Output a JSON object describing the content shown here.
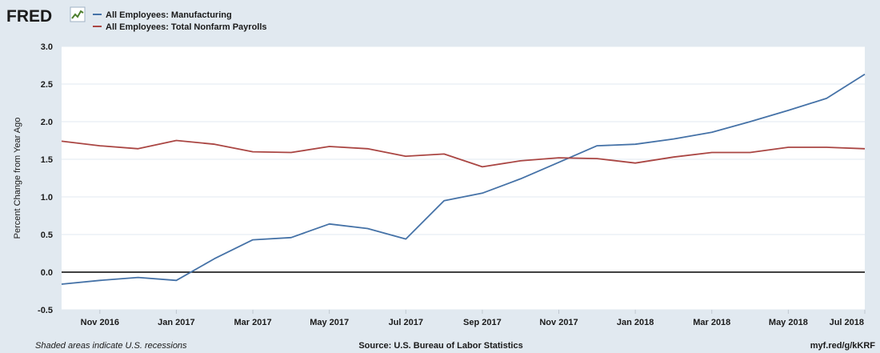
{
  "header": {
    "logo_text": "FRED",
    "logo_icon": "chart-line-icon"
  },
  "footer": {
    "recession_note": "Shaded areas indicate U.S. recessions",
    "source": "Source: U.S. Bureau of Labor Statistics",
    "short_url": "myf.red/g/kKRF"
  },
  "colors": {
    "background": "#e1e9f0",
    "plot_bg": "#ffffff",
    "grid": "#e1e9f0",
    "zero_line": "#000000",
    "series_manufacturing": "#4572a7",
    "series_nonfarm": "#aa4643"
  },
  "chart_data": {
    "type": "line",
    "title": "",
    "xlabel": "",
    "ylabel": "Percent Change from Year Ago",
    "ylim": [
      -0.5,
      3.0
    ],
    "yticks": [
      "-0.5",
      "0.0",
      "0.5",
      "1.0",
      "1.5",
      "2.0",
      "2.5",
      "3.0"
    ],
    "ytick_values": [
      -0.5,
      0.0,
      0.5,
      1.0,
      1.5,
      2.0,
      2.5,
      3.0
    ],
    "x": [
      "Oct 2016",
      "Nov 2016",
      "Dec 2016",
      "Jan 2017",
      "Feb 2017",
      "Mar 2017",
      "Apr 2017",
      "May 2017",
      "Jun 2017",
      "Jul 2017",
      "Aug 2017",
      "Sep 2017",
      "Oct 2017",
      "Nov 2017",
      "Dec 2017",
      "Jan 2018",
      "Feb 2018",
      "Mar 2018",
      "Apr 2018",
      "May 2018",
      "Jun 2018",
      "Jul 2018"
    ],
    "xticks": [
      {
        "index": 1,
        "label": "Nov 2016"
      },
      {
        "index": 3,
        "label": "Jan 2017"
      },
      {
        "index": 5,
        "label": "Mar 2017"
      },
      {
        "index": 7,
        "label": "May 2017"
      },
      {
        "index": 9,
        "label": "Jul 2017"
      },
      {
        "index": 11,
        "label": "Sep 2017"
      },
      {
        "index": 13,
        "label": "Nov 2017"
      },
      {
        "index": 15,
        "label": "Jan 2018"
      },
      {
        "index": 17,
        "label": "Mar 2018"
      },
      {
        "index": 19,
        "label": "May 2018"
      },
      {
        "index": 21,
        "label": "Jul 2018"
      }
    ],
    "series": [
      {
        "name": "All Employees: Manufacturing",
        "color": "#4572a7",
        "values": [
          -0.16,
          -0.11,
          -0.07,
          -0.11,
          0.18,
          0.43,
          0.46,
          0.64,
          0.58,
          0.44,
          0.95,
          1.05,
          1.24,
          1.46,
          1.68,
          1.7,
          1.77,
          1.86,
          2.0,
          2.15,
          2.31,
          2.63
        ]
      },
      {
        "name": "All Employees: Total Nonfarm Payrolls",
        "color": "#aa4643",
        "values": [
          1.74,
          1.68,
          1.64,
          1.75,
          1.7,
          1.6,
          1.59,
          1.67,
          1.64,
          1.54,
          1.57,
          1.4,
          1.48,
          1.52,
          1.51,
          1.45,
          1.53,
          1.59,
          1.59,
          1.66,
          1.66,
          1.64
        ]
      }
    ],
    "legend_position": "top-left",
    "grid": true
  }
}
